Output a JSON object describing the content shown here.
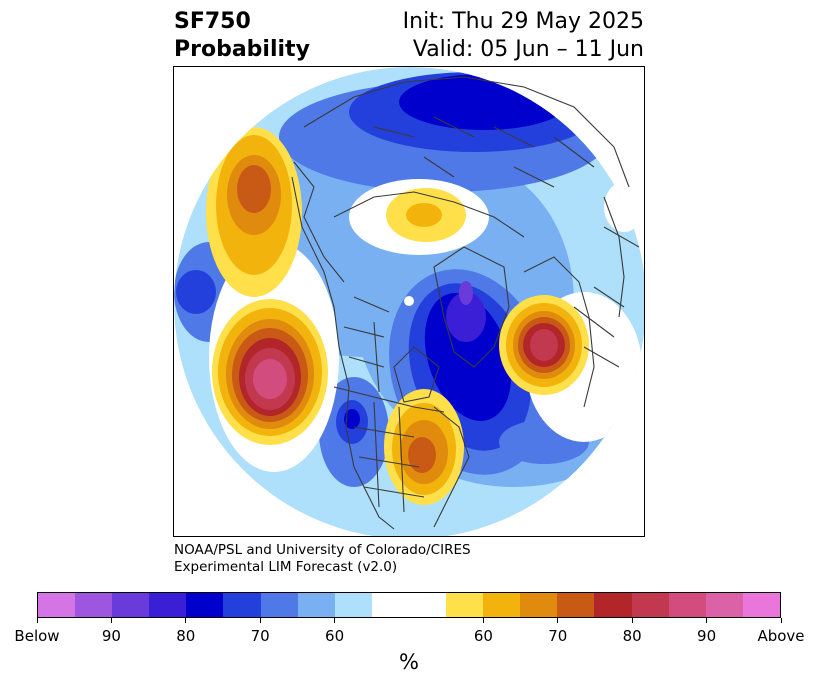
{
  "title": {
    "variable": "SF750",
    "subtitle": "Probability",
    "init": "Init: Thu 29 May 2025",
    "valid": "Valid: 05 Jun – 11 Jun"
  },
  "credit": {
    "line1": "NOAA/PSL and University of Colorado/CIRES",
    "line2": "Experimental LIM Forecast (v2.0)"
  },
  "colorbar": {
    "colors": [
      "#d574e4",
      "#9e56e0",
      "#6a3bdb",
      "#3a1fd6",
      "#0000cd",
      "#2440dc",
      "#4f79e6",
      "#78b0f2",
      "#aee0fb",
      "#ffffff",
      "#ffffff",
      "#ffe04a",
      "#f2b40c",
      "#e08a0e",
      "#c85a16",
      "#b2262a",
      "#c2384e",
      "#d24c7e",
      "#dc62a8",
      "#ea76dc"
    ],
    "tick_labels": [
      "Below",
      "90",
      "80",
      "70",
      "60",
      "60",
      "70",
      "80",
      "90",
      "Above"
    ],
    "unit": "%"
  },
  "map": {
    "projection": "north-polar stereographic",
    "palette": {
      "b1": "#aee0fb",
      "b2": "#78b0f2",
      "b3": "#4f79e6",
      "b4": "#2440dc",
      "b5": "#0000cd",
      "b6": "#3a1fd6",
      "b7": "#6a3bdb",
      "b8": "#9e56e0",
      "y1": "#ffe04a",
      "y2": "#f2b40c",
      "y3": "#e08a0e",
      "y4": "#c85a16",
      "y5": "#b2262a",
      "y6": "#c2384e",
      "y7": "#d24c7e",
      "coast": "#3a3a3a"
    }
  }
}
